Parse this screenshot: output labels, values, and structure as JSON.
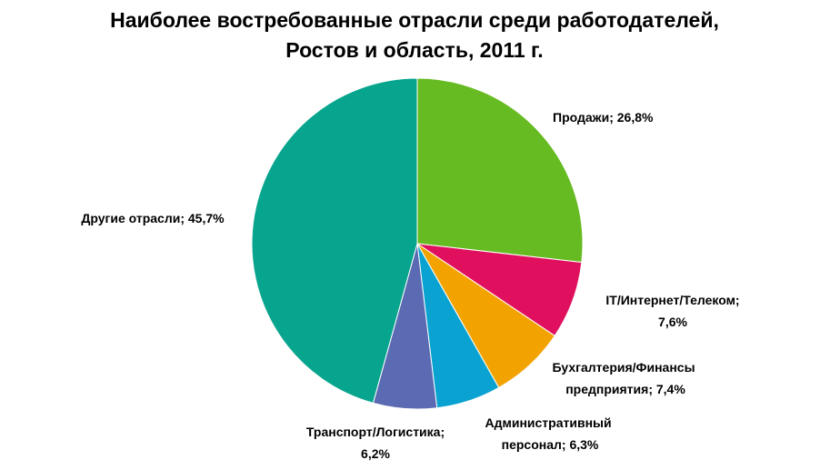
{
  "chart_data": {
    "type": "pie",
    "title": [
      "Наиболее востребованные отрасли среди работодателей,",
      "Ростов и область, 2011 г."
    ],
    "categories": [
      "Продажи",
      "IT/Интернет/Телеком",
      "Бухгалтерия/Финансы предприятия",
      "Административный персонал",
      "Транспорт/Логистика",
      "Другие отрасли"
    ],
    "values": [
      26.8,
      7.6,
      7.4,
      6.3,
      6.2,
      45.7
    ],
    "value_labels": [
      "26,8%",
      "7,6%",
      "7,4%",
      "6,3%",
      "6,2%",
      "45,7%"
    ],
    "label_separator": "; ",
    "colors": [
      "#66bb22",
      "#e0105e",
      "#f3a300",
      "#0aa2d0",
      "#5a6ab3",
      "#08a58e"
    ]
  }
}
